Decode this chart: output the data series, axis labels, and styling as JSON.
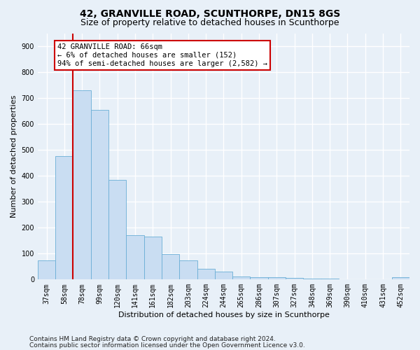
{
  "title1": "42, GRANVILLE ROAD, SCUNTHORPE, DN15 8GS",
  "title2": "Size of property relative to detached houses in Scunthorpe",
  "xlabel": "Distribution of detached houses by size in Scunthorpe",
  "ylabel": "Number of detached properties",
  "categories": [
    "37sqm",
    "58sqm",
    "78sqm",
    "99sqm",
    "120sqm",
    "141sqm",
    "161sqm",
    "182sqm",
    "203sqm",
    "224sqm",
    "244sqm",
    "265sqm",
    "286sqm",
    "307sqm",
    "327sqm",
    "348sqm",
    "369sqm",
    "390sqm",
    "410sqm",
    "431sqm",
    "452sqm"
  ],
  "values": [
    75,
    475,
    730,
    655,
    385,
    170,
    165,
    97,
    75,
    42,
    30,
    12,
    10,
    8,
    5,
    3,
    3,
    1,
    0,
    0,
    8
  ],
  "bar_color": "#c9ddf2",
  "bar_edge_color": "#6aaed6",
  "bg_color": "#e8f0f8",
  "fig_bg_color": "#e8f0f8",
  "grid_color": "#ffffff",
  "vline_x": 1.5,
  "vline_color": "#cc0000",
  "annotation_text": "42 GRANVILLE ROAD: 66sqm\n← 6% of detached houses are smaller (152)\n94% of semi-detached houses are larger (2,582) →",
  "annotation_box_color": "#ffffff",
  "annotation_box_edge": "#cc0000",
  "ylim": [
    0,
    950
  ],
  "yticks": [
    0,
    100,
    200,
    300,
    400,
    500,
    600,
    700,
    800,
    900
  ],
  "footnote1": "Contains HM Land Registry data © Crown copyright and database right 2024.",
  "footnote2": "Contains public sector information licensed under the Open Government Licence v3.0.",
  "title1_fontsize": 10,
  "title2_fontsize": 9,
  "axis_label_fontsize": 8,
  "tick_fontsize": 7,
  "annotation_fontsize": 7.5,
  "footnote_fontsize": 6.5
}
